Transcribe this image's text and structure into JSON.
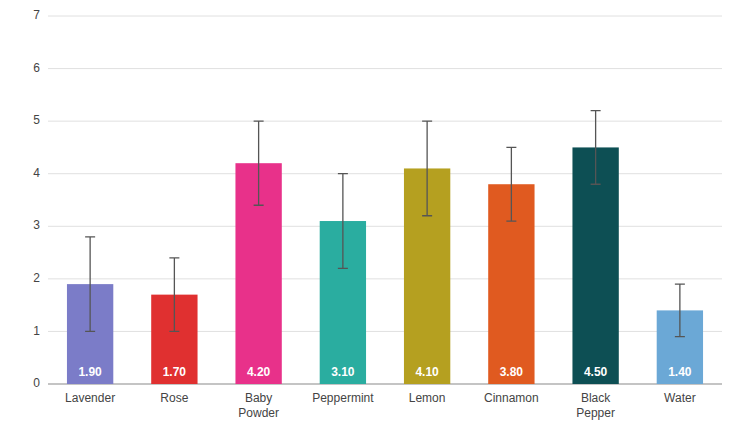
{
  "chart_data": {
    "type": "bar",
    "categories": [
      "Lavender",
      "Rose",
      "Baby\nPowder",
      "Peppermint",
      "Lemon",
      "Cinnamon",
      "Black\nPepper",
      "Water"
    ],
    "values": [
      1.9,
      1.7,
      4.2,
      3.1,
      4.1,
      3.8,
      4.5,
      1.4
    ],
    "value_labels": [
      "1.90",
      "1.70",
      "4.20",
      "3.10",
      "4.10",
      "3.80",
      "4.50",
      "1.40"
    ],
    "errors": [
      0.9,
      0.7,
      0.8,
      0.9,
      0.9,
      0.7,
      0.7,
      0.5
    ],
    "colors": [
      "#7B7CC8",
      "#E03030",
      "#E8318A",
      "#2AADA0",
      "#B5A020",
      "#E05A20",
      "#0D4F54",
      "#6BA8D6"
    ],
    "ylim": [
      0,
      7
    ],
    "yticks": [
      0,
      1,
      2,
      3,
      4,
      5,
      6,
      7
    ],
    "grid": true,
    "data_labels": true
  }
}
